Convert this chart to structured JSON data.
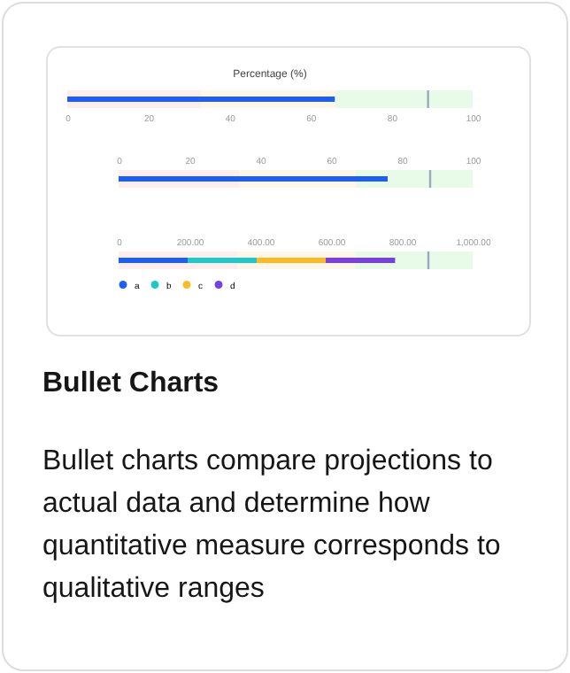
{
  "chart_data": [
    {
      "type": "bar",
      "title": "Percentage (%)",
      "orientation": "horizontal",
      "categories": [
        null
      ],
      "values": [
        66
      ],
      "color": "#1f5ef5",
      "xlim": [
        0,
        100
      ],
      "xticks": [
        0,
        20,
        40,
        60,
        80,
        100
      ],
      "bands": [
        {
          "axis": "x",
          "from": 0,
          "to": 33,
          "color": "#fdeeee"
        },
        {
          "axis": "x",
          "from": 33,
          "to": 66,
          "color": "#fff6ea"
        },
        {
          "axis": "x",
          "from": 66,
          "to": 100,
          "color": "#e8fbe8"
        }
      ],
      "ref_lines": [
        {
          "axis": "x",
          "value": 89,
          "color": "#9aa8c0"
        }
      ]
    },
    {
      "type": "bar",
      "orientation": "horizontal",
      "categories": [
        null
      ],
      "x2lim": [
        0,
        100
      ],
      "x2ticks": [
        0,
        20,
        40,
        60,
        80,
        100
      ],
      "series": [
        {
          "color": "#1f5ef5",
          "axis": "x2",
          "values": [
            76
          ]
        }
      ],
      "bands": [
        {
          "axis": "x2",
          "from": 0,
          "to": 34,
          "color": "#fdeeee"
        },
        {
          "axis": "x2",
          "from": 34,
          "to": 67,
          "color": "#fff6ea"
        },
        {
          "axis": "x2",
          "from": 67,
          "to": 100,
          "color": "#e8fbe8"
        }
      ],
      "ref_lines": [
        {
          "axis": "x2",
          "value": 88,
          "color": "#9aa8c0"
        }
      ]
    },
    {
      "type": "bar",
      "orientation": "horizontal",
      "stacked": true,
      "legend": "bottom",
      "categories": [
        null
      ],
      "x2lim": [
        0,
        1000
      ],
      "x2ticks": [
        0,
        {
          "value": 200,
          "label": "200.00"
        },
        {
          "value": 400,
          "label": "400.00"
        },
        {
          "value": 600,
          "label": "600.00"
        },
        {
          "value": 800,
          "label": "800.00"
        },
        {
          "value": 1000,
          "label": "1,000.00"
        }
      ],
      "series": [
        {
          "name": "a",
          "color": "#1f5ef5",
          "axis": "x2",
          "values": [
            195
          ]
        },
        {
          "name": "b",
          "color": "#1ec8c8",
          "axis": "x2",
          "values": [
            195
          ]
        },
        {
          "name": "c",
          "color": "#fbbb26",
          "axis": "x2",
          "values": [
            195
          ]
        },
        {
          "name": "d",
          "color": "#7a3fe0",
          "axis": "x2",
          "values": [
            196
          ]
        }
      ],
      "bands": [
        {
          "axis": "x2",
          "from": 0,
          "to": 335,
          "color": "#fdeeee"
        },
        {
          "axis": "x2",
          "from": 335,
          "to": 668,
          "color": "#fff6ea"
        },
        {
          "axis": "x2",
          "from": 668,
          "to": 1000,
          "color": "#e8fbe8"
        }
      ],
      "ref_lines": [
        {
          "axis": "x2",
          "value": 875,
          "color": "#9aa8c0"
        }
      ]
    },
    {
      "type": "other",
      "title": "Bullet Charts",
      "annotations": [
        "Bullet charts compare projections to actual data and determine how quantitative measure corresponds to qualitative ranges"
      ]
    }
  ]
}
